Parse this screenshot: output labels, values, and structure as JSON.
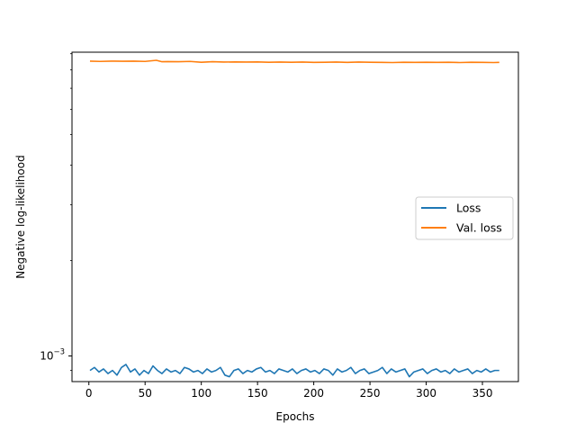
{
  "chart_data": {
    "type": "line",
    "xlabel": "Epochs",
    "ylabel": "Negative log-likelihood",
    "xlim": [
      -15,
      382
    ],
    "ylim": [
      0.00083,
      0.0091
    ],
    "yscale": "log",
    "xticks": [
      0,
      50,
      100,
      150,
      200,
      250,
      300,
      350
    ],
    "xtick_labels": [
      "0",
      "50",
      "100",
      "150",
      "200",
      "250",
      "300",
      "350"
    ],
    "yticks": [
      0.001
    ],
    "ytick_labels": [
      "10−3"
    ],
    "ytick_base": "10",
    "ytick_exponent": "−3",
    "legend_position": "center-right",
    "grid": false,
    "series": [
      {
        "name": "Loss",
        "color": "#1f77b4",
        "x": [
          1,
          5,
          9,
          13,
          17,
          21,
          25,
          29,
          33,
          37,
          41,
          45,
          49,
          53,
          57,
          61,
          65,
          69,
          73,
          77,
          81,
          85,
          89,
          93,
          97,
          101,
          105,
          109,
          113,
          117,
          121,
          125,
          129,
          133,
          137,
          141,
          145,
          149,
          153,
          157,
          161,
          165,
          169,
          173,
          177,
          181,
          185,
          189,
          193,
          197,
          201,
          205,
          209,
          213,
          217,
          221,
          225,
          229,
          233,
          237,
          241,
          245,
          249,
          253,
          257,
          261,
          265,
          269,
          273,
          277,
          281,
          285,
          289,
          293,
          297,
          301,
          305,
          309,
          313,
          317,
          321,
          325,
          329,
          333,
          337,
          341,
          345,
          349,
          353,
          357,
          361,
          365
        ],
        "values": [
          0.0009,
          0.00092,
          0.00089,
          0.00091,
          0.00088,
          0.0009,
          0.00087,
          0.00092,
          0.00094,
          0.00089,
          0.00091,
          0.00087,
          0.0009,
          0.00088,
          0.00093,
          0.0009,
          0.00088,
          0.00091,
          0.00089,
          0.0009,
          0.00088,
          0.00092,
          0.00091,
          0.00089,
          0.0009,
          0.00088,
          0.00091,
          0.00089,
          0.0009,
          0.00092,
          0.00087,
          0.00086,
          0.0009,
          0.00091,
          0.00088,
          0.0009,
          0.00089,
          0.00091,
          0.00092,
          0.00089,
          0.0009,
          0.00088,
          0.00091,
          0.0009,
          0.00089,
          0.00091,
          0.00088,
          0.0009,
          0.00091,
          0.00089,
          0.0009,
          0.00088,
          0.00091,
          0.0009,
          0.00087,
          0.00091,
          0.00089,
          0.0009,
          0.00092,
          0.00088,
          0.0009,
          0.00091,
          0.00088,
          0.00089,
          0.0009,
          0.00092,
          0.00088,
          0.00091,
          0.00089,
          0.0009,
          0.00091,
          0.00086,
          0.00089,
          0.0009,
          0.00091,
          0.00088,
          0.0009,
          0.00091,
          0.00089,
          0.0009,
          0.00088,
          0.00091,
          0.00089,
          0.0009,
          0.00091,
          0.00088,
          0.0009,
          0.00089,
          0.00091,
          0.00089,
          0.0009,
          0.0009
        ]
      },
      {
        "name": "Val. loss",
        "color": "#ff7f0e",
        "x": [
          1,
          10,
          20,
          30,
          40,
          50,
          60,
          65,
          70,
          80,
          90,
          100,
          110,
          120,
          130,
          140,
          150,
          160,
          170,
          180,
          190,
          200,
          210,
          220,
          230,
          240,
          250,
          260,
          270,
          280,
          290,
          300,
          310,
          320,
          330,
          340,
          350,
          360,
          365
        ],
        "values": [
          0.00853,
          0.00851,
          0.00853,
          0.00852,
          0.00853,
          0.00851,
          0.00858,
          0.00849,
          0.0085,
          0.00849,
          0.00851,
          0.00846,
          0.00849,
          0.00847,
          0.00848,
          0.00847,
          0.00848,
          0.00846,
          0.00847,
          0.00846,
          0.00847,
          0.00845,
          0.00846,
          0.00847,
          0.00845,
          0.00847,
          0.00846,
          0.00845,
          0.00844,
          0.00846,
          0.00845,
          0.00846,
          0.00845,
          0.00846,
          0.00844,
          0.00846,
          0.00845,
          0.00844,
          0.00845
        ]
      }
    ]
  }
}
